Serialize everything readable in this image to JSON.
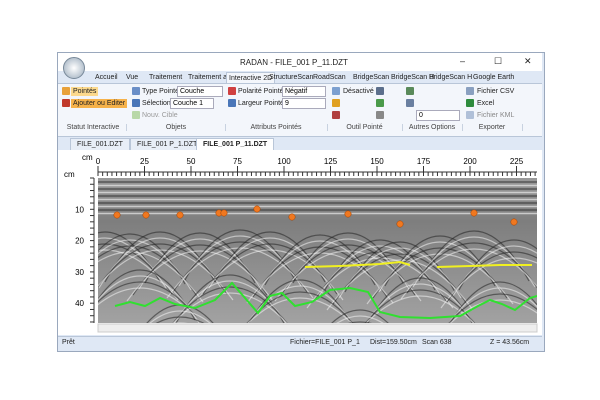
{
  "window": {
    "title": "RADAN - FILE_001 P_11.DZT"
  },
  "ribbon": {
    "tabs": [
      "Accueil",
      "Vue",
      "Traitement",
      "Traitement av",
      "Interactive 2D",
      "StructureScan",
      "RoadScan",
      "BridgeScan",
      "BridgeScan H",
      "BridgeScan H",
      "Google Earth"
    ],
    "groups": [
      "Statut Interactive",
      "Objets",
      "Attributs Pointés",
      "Outil Pointé",
      "Autres Options",
      "Exporter"
    ],
    "controls": {
      "pointes": "Pointés",
      "ajouter": "Ajouter ou Editer",
      "type_pointe": "Type Pointé",
      "type_value": "Couche",
      "selection": "Sélection",
      "selection_value": "Couche 1",
      "nouv_cible": "Nouv. Cible",
      "polarite": "Polarité Pointé",
      "polarite_value": "Négatif",
      "largeur": "Largeur Pointé",
      "largeur_value": "9",
      "desactive": "Désactivé",
      "option_value": "0",
      "csv": "Fichier CSV",
      "excel": "Excel",
      "kml": "Fichier KML"
    }
  },
  "doc_tabs": [
    "FILE_001.DZT",
    "FILE_001 P_1.DZT",
    "FILE_001 P_11.DZT"
  ],
  "radargram": {
    "x_unit": "cm",
    "y_unit": "cm",
    "x_ticks": [
      0,
      25,
      50,
      75,
      100,
      125,
      150,
      175,
      200,
      225
    ],
    "y_ticks": [
      10,
      20,
      30,
      40
    ]
  },
  "status": {
    "state": "Prêt",
    "file": "Fichier=FILE_001 P_1",
    "dist": "Dist=159.50cm",
    "scan": "Scan 638",
    "z": "Z = 43.56cm"
  }
}
